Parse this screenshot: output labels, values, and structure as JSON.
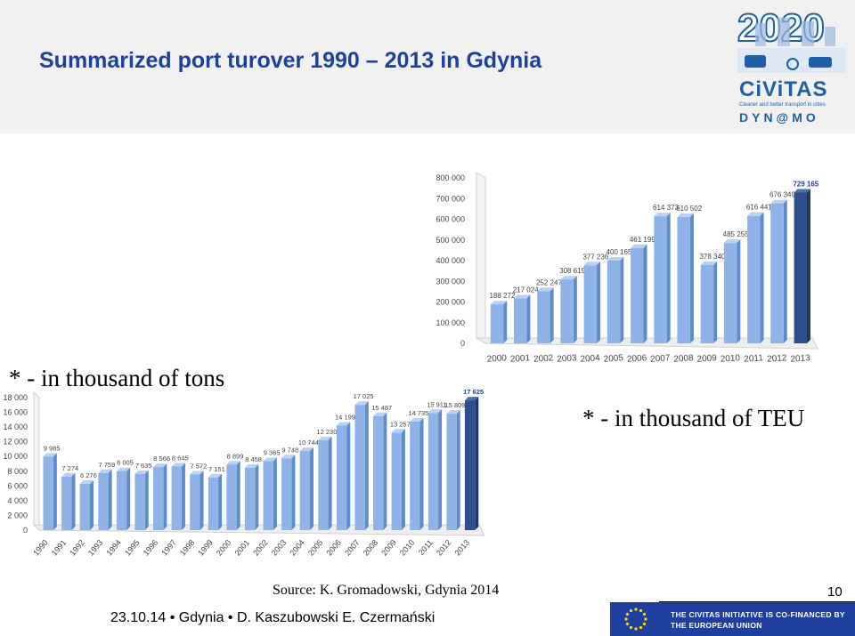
{
  "slide": {
    "title": "Summarized port turover 1990 – 2013 in Gdynia",
    "note_tons": "* - in thousand of tons",
    "note_teu": "* - in thousand of TEU",
    "source": "Source: K. Gromadowski, Gdynia 2014",
    "page_number": "10",
    "footer": "23.10.14 • Gdynia • D. Kaszubowski E. Czermański",
    "eu_text_line1": "THE CIVITAS INITIATIVE IS CO-FINANCED BY",
    "eu_text_line2": "THE EUROPEAN UNION"
  },
  "logo": {
    "year": "2020",
    "name": "CiViTAS",
    "tagline1": "Cleaner and better transport in cities",
    "project": "DYN@MO"
  },
  "colors": {
    "title": "#1f3f9e",
    "bar": "#8db3e8",
    "bar_last": "#2e4f8c",
    "eu_blue": "#1f3f9e"
  },
  "chart_data": [
    {
      "type": "bar",
      "unit": "thousand of TEU",
      "categories": [
        "2000",
        "2001",
        "2002",
        "2003",
        "2004",
        "2005",
        "2006",
        "2007",
        "2008",
        "2009",
        "2010",
        "2011",
        "2012",
        "2013"
      ],
      "values": [
        188272,
        217024,
        252247,
        308619,
        377236,
        400165,
        461199,
        614373,
        610502,
        378340,
        485255,
        616441,
        676349,
        729165
      ],
      "value_labels": [
        "188 272",
        "217 024",
        "252 247",
        "308 619",
        "377 236",
        "400 165",
        "461 199",
        "614 373",
        "610 502",
        "378 340",
        "485 255",
        "616 441",
        "676 349",
        "729 165"
      ],
      "y_ticks": [
        "0",
        "100 000",
        "200 000",
        "300 000",
        "400 000",
        "500 000",
        "600 000",
        "700 000",
        "800 000"
      ],
      "ylim": [
        0,
        800000
      ],
      "grid": false,
      "highlight_last": true
    },
    {
      "type": "bar",
      "unit": "thousand of tons",
      "categories": [
        "1990",
        "1991",
        "1992",
        "1993",
        "1994",
        "1995",
        "1996",
        "1997",
        "1998",
        "1999",
        "2000",
        "2001",
        "2002",
        "2003",
        "2004",
        "2005",
        "2006",
        "2007",
        "2008",
        "2009",
        "2010",
        "2011",
        "2012",
        "2013"
      ],
      "values": [
        9985,
        7274,
        6276,
        7759,
        8005,
        7635,
        8566,
        8645,
        7572,
        7151,
        8899,
        8458,
        9365,
        9748,
        10744,
        12230,
        14199,
        17025,
        15487,
        13257,
        14735,
        15911,
        15809,
        17625
      ],
      "value_labels": [
        "9 985",
        "7 274",
        "6 276",
        "7 759",
        "8 005",
        "7 635",
        "8 566",
        "8 645",
        "7 572",
        "7 151",
        "8 899",
        "8 458",
        "9 365",
        "9 748",
        "10 744",
        "12 230",
        "14 199",
        "17 025",
        "15 487",
        "13 257",
        "14 735",
        "15 911",
        "15 809",
        "17 625"
      ],
      "y_ticks": [
        "0",
        "2 000",
        "4 000",
        "6 000",
        "8 000",
        "10 000",
        "12 000",
        "14 000",
        "16 000",
        "18 000"
      ],
      "ylim": [
        0,
        18000
      ],
      "grid": false,
      "highlight_last": true
    }
  ]
}
